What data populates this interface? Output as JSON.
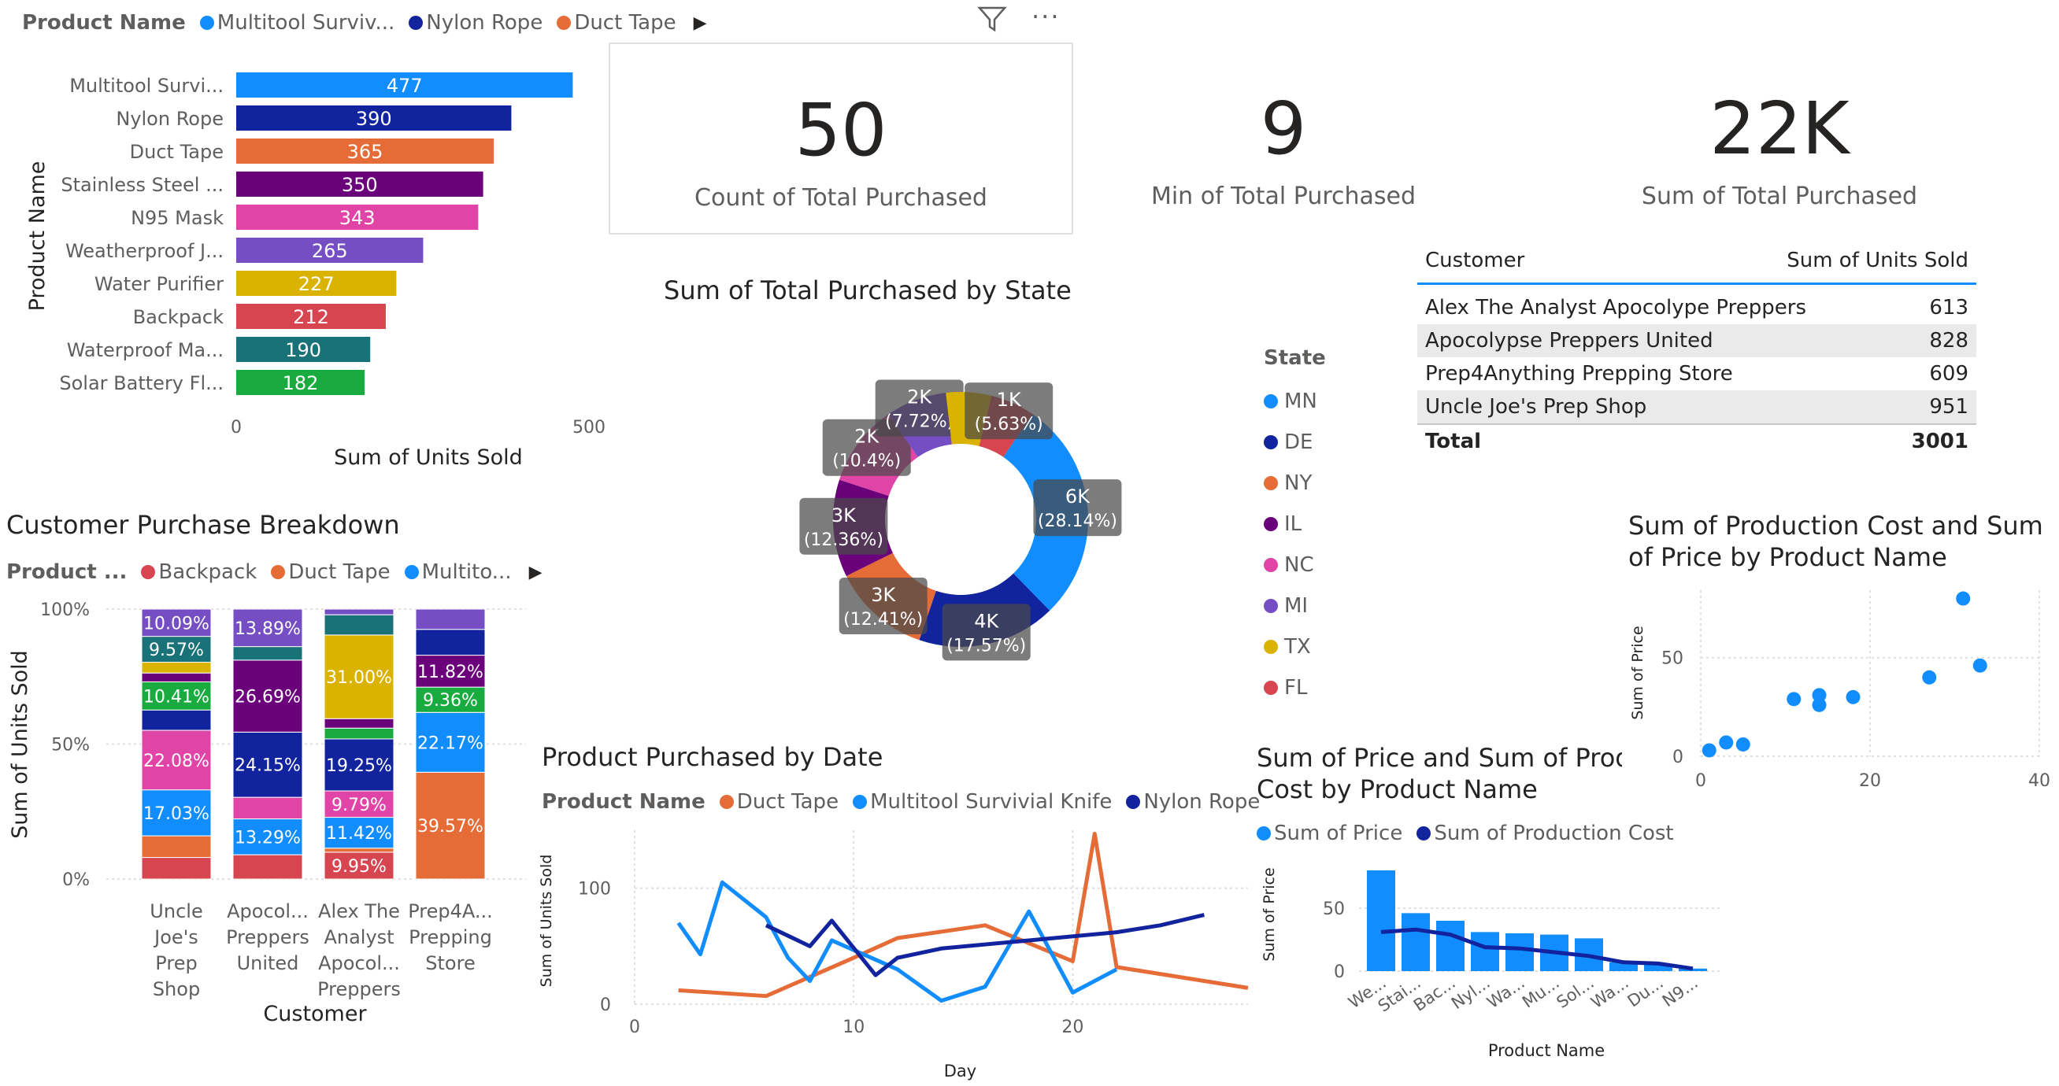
{
  "colors": {
    "multitool": "#118dff",
    "nylon": "#12239e",
    "duct": "#e66c37",
    "stainless": "#6b007b",
    "n95": "#e044a7",
    "weather": "#744ec2",
    "water": "#d9b300",
    "backpack": "#d64550",
    "waterproof": "#197278",
    "solar": "#1aab40"
  },
  "top_bar": {
    "legend_title": "Product Name",
    "legend_items": [
      {
        "label": "Multitool Surviv...",
        "color": "#118dff"
      },
      {
        "label": "Nylon Rope",
        "color": "#12239e"
      },
      {
        "label": "Duct Tape",
        "color": "#e66c37"
      }
    ],
    "nav_icon": "chevron-right-icon"
  },
  "visual_header": {
    "filter_icon": "filter-icon",
    "more_icon": "more-options-icon"
  },
  "cards": [
    {
      "value": "50",
      "label": "Count of Total Purchased"
    },
    {
      "value": "9",
      "label": "Min of Total Purchased"
    },
    {
      "value": "22K",
      "label": "Sum of Total Purchased"
    }
  ],
  "units_table": {
    "col_customer": "Customer",
    "col_units": "Sum of Units Sold",
    "rows": [
      {
        "customer": "Alex The Analyst Apocolype Preppers",
        "units": "613"
      },
      {
        "customer": "Apocolypse Preppers United",
        "units": "828"
      },
      {
        "customer": "Prep4Anything Prepping Store",
        "units": "609"
      },
      {
        "customer": "Uncle Joe's Prep Shop",
        "units": "951"
      }
    ],
    "total_label": "Total",
    "total_value": "3001"
  },
  "chart_data": [
    {
      "id": "product_bar",
      "type": "bar",
      "orientation": "horizontal",
      "categories": [
        "Multitool Survi...",
        "Nylon Rope",
        "Duct Tape",
        "Stainless Steel ...",
        "N95 Mask",
        "Weatherproof J...",
        "Water Purifier",
        "Backpack",
        "Waterproof Ma...",
        "Solar Battery Fl..."
      ],
      "values": [
        477,
        390,
        365,
        350,
        343,
        265,
        227,
        212,
        190,
        182
      ],
      "colors": [
        "#118dff",
        "#12239e",
        "#e66c37",
        "#6b007b",
        "#e044a7",
        "#744ec2",
        "#d9b300",
        "#d64550",
        "#197278",
        "#1aab40"
      ],
      "xlabel": "Sum of Units Sold",
      "ylabel": "Product Name",
      "xlim": [
        0,
        500
      ],
      "x_ticks": [
        "0",
        "500"
      ]
    },
    {
      "id": "customer_breakdown",
      "type": "bar",
      "stacked": "100%",
      "title": "Customer Purchase Breakdown",
      "legend_title": "Product ...",
      "legend_items": [
        {
          "label": "Backpack",
          "color": "#d64550"
        },
        {
          "label": "Duct Tape",
          "color": "#e66c37"
        },
        {
          "label": "Multito...",
          "color": "#118dff"
        }
      ],
      "categories": [
        "Uncle Joe's Prep Shop",
        "Apocol... Preppers United",
        "Alex The Analyst Apocol... Preppers",
        "Prep4A... Prepping Store"
      ],
      "category_lines": [
        [
          "Uncle",
          "Joe's",
          "Prep",
          "Shop"
        ],
        [
          "Apocol...",
          "Preppers",
          "United"
        ],
        [
          "Alex The",
          "Analyst",
          "Apocol...",
          "Preppers"
        ],
        [
          "Prep4A...",
          "Prepping",
          "Store"
        ]
      ],
      "xlabel": "Customer",
      "ylabel": "Sum of Units Sold",
      "y_ticks": [
        "0%",
        "50%",
        "100%"
      ],
      "stacks": [
        [
          {
            "color": "#d64550",
            "value": 8.0,
            "label": ""
          },
          {
            "color": "#e66c37",
            "value": 8.0,
            "label": ""
          },
          {
            "color": "#118dff",
            "value": 17.03,
            "label": "17.03%"
          },
          {
            "color": "#e044a7",
            "value": 22.08,
            "label": "22.08%"
          },
          {
            "color": "#12239e",
            "value": 7.5,
            "label": ""
          },
          {
            "color": "#1aab40",
            "value": 10.41,
            "label": "10.41%"
          },
          {
            "color": "#6b007b",
            "value": 3.3,
            "label": ""
          },
          {
            "color": "#d9b300",
            "value": 4.0,
            "label": ""
          },
          {
            "color": "#197278",
            "value": 9.57,
            "label": "9.57%"
          },
          {
            "color": "#744ec2",
            "value": 10.09,
            "label": "10.09%"
          }
        ],
        [
          {
            "color": "#d64550",
            "value": 9.0,
            "label": ""
          },
          {
            "color": "#118dff",
            "value": 13.29,
            "label": "13.29%"
          },
          {
            "color": "#e044a7",
            "value": 8.0,
            "label": ""
          },
          {
            "color": "#12239e",
            "value": 24.15,
            "label": "24.15%"
          },
          {
            "color": "#6b007b",
            "value": 26.69,
            "label": "26.69%"
          },
          {
            "color": "#197278",
            "value": 5.0,
            "label": ""
          },
          {
            "color": "#744ec2",
            "value": 13.89,
            "label": "13.89%"
          }
        ],
        [
          {
            "color": "#d64550",
            "value": 9.95,
            "label": "9.95%"
          },
          {
            "color": "#e66c37",
            "value": 1.5,
            "label": ""
          },
          {
            "color": "#118dff",
            "value": 11.42,
            "label": "11.42%"
          },
          {
            "color": "#e044a7",
            "value": 9.79,
            "label": "9.79%"
          },
          {
            "color": "#12239e",
            "value": 19.25,
            "label": "19.25%"
          },
          {
            "color": "#1aab40",
            "value": 4.0,
            "label": ""
          },
          {
            "color": "#6b007b",
            "value": 3.5,
            "label": ""
          },
          {
            "color": "#d9b300",
            "value": 31.0,
            "label": "31.00%"
          },
          {
            "color": "#197278",
            "value": 7.5,
            "label": ""
          },
          {
            "color": "#744ec2",
            "value": 2.09,
            "label": ""
          }
        ],
        [
          {
            "color": "#e66c37",
            "value": 39.57,
            "label": "39.57%"
          },
          {
            "color": "#118dff",
            "value": 22.17,
            "label": "22.17%"
          },
          {
            "color": "#1aab40",
            "value": 9.36,
            "label": "9.36%"
          },
          {
            "color": "#6b007b",
            "value": 11.82,
            "label": "11.82%"
          },
          {
            "color": "#12239e",
            "value": 9.58,
            "label": ""
          },
          {
            "color": "#744ec2",
            "value": 7.5,
            "label": ""
          }
        ]
      ]
    },
    {
      "id": "state_donut",
      "type": "pie",
      "donut": true,
      "title": "Sum of Total Purchased by State",
      "legend_title": "State",
      "slices": [
        {
          "state": "MN",
          "color": "#118dff",
          "percent": 28.14,
          "label": "6K",
          "pct_label": "(28.14%)"
        },
        {
          "state": "DE",
          "color": "#12239e",
          "percent": 17.57,
          "label": "4K",
          "pct_label": "(17.57%)"
        },
        {
          "state": "NY",
          "color": "#e66c37",
          "percent": 12.41,
          "label": "3K",
          "pct_label": "(12.41%)"
        },
        {
          "state": "IL",
          "color": "#6b007b",
          "percent": 12.36,
          "label": "3K",
          "pct_label": "(12.36%)"
        },
        {
          "state": "NC",
          "color": "#e044a7",
          "percent": 10.4,
          "label": "2K",
          "pct_label": "(10.4%)"
        },
        {
          "state": "MI",
          "color": "#744ec2",
          "percent": 7.72,
          "label": "2K",
          "pct_label": "(7.72%)"
        },
        {
          "state": "TX",
          "color": "#d9b300",
          "percent": 5.77,
          "label": "",
          "pct_label": ""
        },
        {
          "state": "FL",
          "color": "#d64550",
          "percent": 5.63,
          "label": "1K",
          "pct_label": "(5.63%)"
        }
      ]
    },
    {
      "id": "purchased_by_date",
      "type": "line",
      "title": "Product Purchased by Date",
      "legend_title": "Product Name",
      "xlabel": "Day",
      "ylabel": "Sum of Units Sold",
      "xlim": [
        0,
        28
      ],
      "ylim": [
        0,
        150
      ],
      "x_ticks": [
        0,
        10,
        20
      ],
      "y_ticks": [
        0,
        100
      ],
      "series": [
        {
          "name": "Duct Tape",
          "color": "#e66c37",
          "x": [
            2,
            6,
            10,
            12,
            16,
            20,
            21,
            22,
            28
          ],
          "y": [
            12,
            7,
            40,
            57,
            68,
            37,
            147,
            32,
            14
          ]
        },
        {
          "name": "Multitool Survivial Knife",
          "color": "#118dff",
          "x": [
            2,
            3,
            4,
            6,
            7,
            8,
            9,
            12,
            14,
            16,
            18,
            19,
            20,
            22
          ],
          "y": [
            70,
            43,
            105,
            75,
            40,
            20,
            55,
            30,
            3,
            15,
            80,
            45,
            10,
            30
          ]
        },
        {
          "name": "Nylon Rope",
          "color": "#12239e",
          "x": [
            6,
            8,
            9,
            11,
            12,
            14,
            18,
            22,
            24,
            26
          ],
          "y": [
            68,
            50,
            72,
            25,
            40,
            48,
            55,
            62,
            68,
            77
          ]
        }
      ]
    },
    {
      "id": "price_cost_combo",
      "type": "bar",
      "combo_line": true,
      "title_lines": [
        "Sum of Price and Sum of Produ",
        "Cost by Product Name"
      ],
      "legend_items": [
        {
          "label": "Sum of Price",
          "color": "#118dff"
        },
        {
          "label": "Sum of Production Cost",
          "color": "#12239e"
        }
      ],
      "categories": [
        "We...",
        "Stai...",
        "Bac...",
        "Nyl...",
        "Wa...",
        "Mu...",
        "Sol...",
        "Wa...",
        "Du...",
        "N9..."
      ],
      "series": [
        {
          "name": "Sum of Price",
          "type": "bar",
          "color": "#118dff",
          "values": [
            80,
            46,
            40,
            31,
            30,
            29,
            26,
            7,
            5,
            2
          ]
        },
        {
          "name": "Sum of Production Cost",
          "type": "line",
          "color": "#12239e",
          "values": [
            31,
            33,
            29,
            19,
            18,
            15,
            12,
            7,
            6,
            2
          ]
        }
      ],
      "xlabel": "Product Name",
      "ylabel": "Sum of Price",
      "ylim": [
        0,
        85
      ],
      "y_ticks": [
        0,
        50
      ]
    },
    {
      "id": "cost_price_scatter",
      "type": "scatter",
      "title_lines": [
        "Sum of Production Cost and Sum",
        "of Price by Product Name"
      ],
      "ylabel": "Sum of Price",
      "xlim": [
        0,
        40
      ],
      "ylim": [
        0,
        85
      ],
      "x_ticks": [
        0,
        20,
        40
      ],
      "y_ticks": [
        0,
        50
      ],
      "x": [
        1,
        3,
        5,
        11,
        14,
        14,
        18,
        27,
        31,
        33
      ],
      "y": [
        3,
        7,
        6,
        29,
        26,
        31,
        30,
        40,
        80,
        46
      ],
      "color": "#118dff"
    }
  ]
}
